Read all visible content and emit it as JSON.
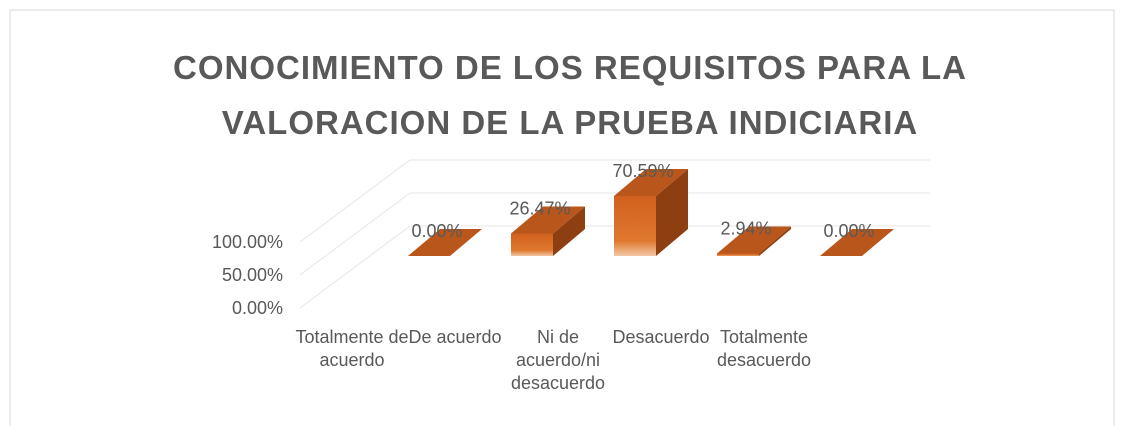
{
  "chart_data": {
    "type": "bar3d",
    "title": "CONOCIMIENTO DE LOS REQUISITOS PARA LA VALORACION DE LA PRUEBA INDICIARIA",
    "categories": [
      "Totalmente de acuerdo",
      "De acuerdo",
      "Ni de acuerdo/ni desacuerdo",
      "Desacuerdo",
      "Totalmente desacuerdo"
    ],
    "values": [
      0,
      26.47,
      70.59,
      2.94,
      0
    ],
    "value_labels": [
      "0.00%",
      "26.47%",
      "70.59%",
      "2.94%",
      "0.00%"
    ],
    "color": "#d86a26",
    "ylim": [
      0,
      100
    ],
    "yticks": [
      {
        "value": 0,
        "label": "0.00%"
      },
      {
        "value": 50,
        "label": "50.00%"
      },
      {
        "value": 100,
        "label": "100.00%"
      }
    ],
    "grid": true
  }
}
